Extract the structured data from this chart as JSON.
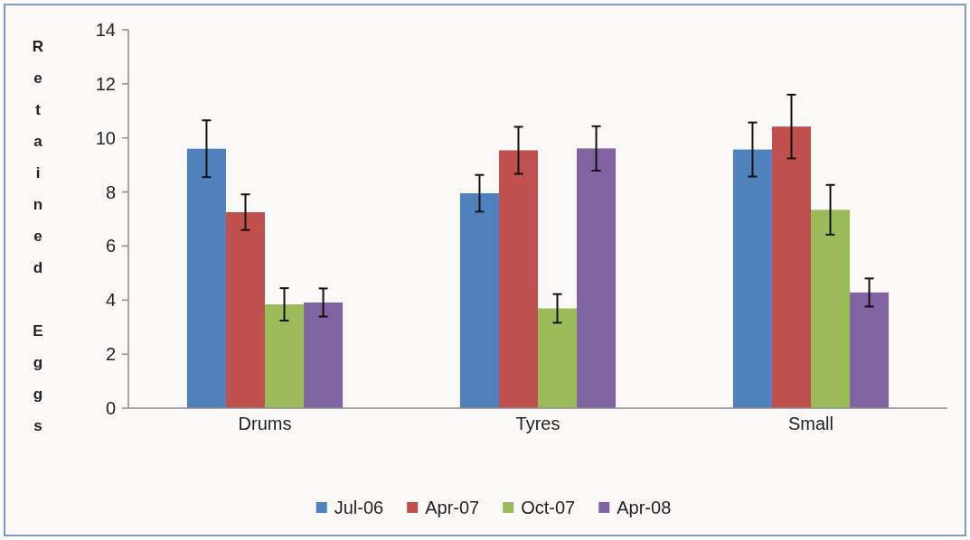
{
  "chart_data": {
    "type": "bar",
    "ylabel": "Retained Eggs",
    "categories": [
      "Drums",
      "Tyres",
      "Small"
    ],
    "series": [
      {
        "name": "Jul-06",
        "color": "#4f81bd",
        "values": [
          9.6,
          7.95,
          9.57
        ],
        "errors": [
          1.05,
          0.68,
          1.0
        ]
      },
      {
        "name": "Apr-07",
        "color": "#c0504d",
        "values": [
          7.25,
          9.54,
          10.42
        ],
        "errors": [
          0.66,
          0.87,
          1.18
        ]
      },
      {
        "name": "Oct-07",
        "color": "#9bbb59",
        "values": [
          3.84,
          3.69,
          7.34
        ],
        "errors": [
          0.6,
          0.53,
          0.92
        ]
      },
      {
        "name": "Apr-08",
        "color": "#8064a2",
        "values": [
          3.91,
          9.61,
          4.28
        ],
        "errors": [
          0.52,
          0.82,
          0.52
        ]
      }
    ],
    "ylim": [
      0,
      14
    ],
    "yticks": [
      0,
      2,
      4,
      6,
      8,
      10,
      12,
      14
    ],
    "grid": false,
    "legend": "bottom"
  }
}
